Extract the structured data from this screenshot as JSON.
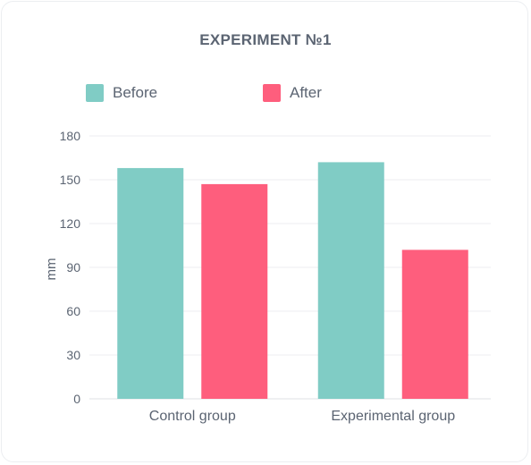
{
  "chart_data": {
    "type": "bar",
    "title": "EXPERIMENT №1",
    "xlabel": "",
    "ylabel": "mm",
    "categories": [
      "Control group",
      "Experimental group"
    ],
    "series": [
      {
        "name": "Before",
        "values": [
          158,
          162
        ],
        "color": "#80ccc5"
      },
      {
        "name": "After",
        "values": [
          147,
          102
        ],
        "color": "#fe5e7d"
      }
    ],
    "ylim": [
      0,
      180
    ],
    "yticks": [
      0,
      30,
      60,
      90,
      120,
      150,
      180
    ],
    "grid": true,
    "legend_position": "top-left"
  }
}
